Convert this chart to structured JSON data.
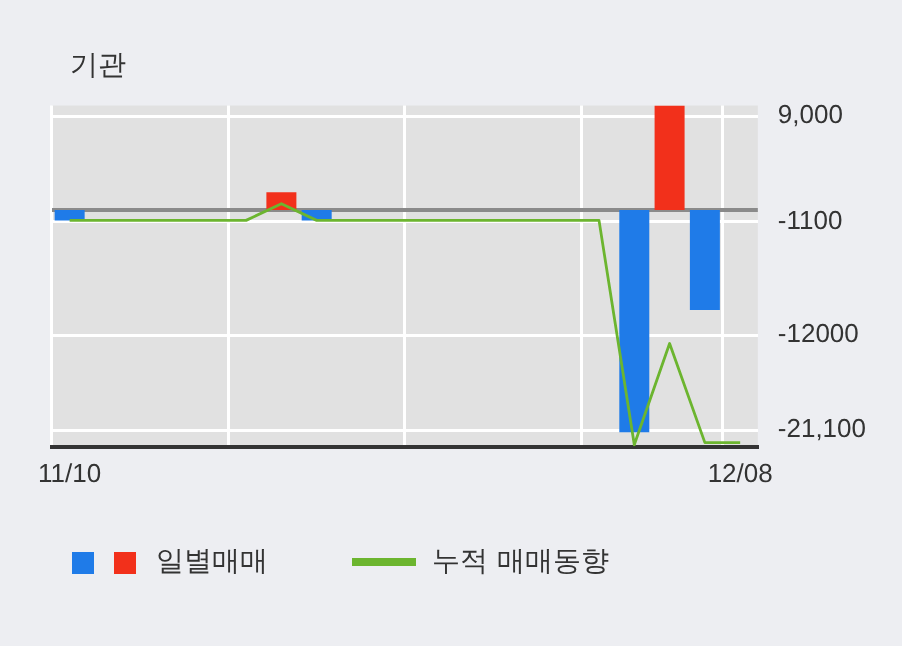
{
  "chart_data": {
    "type": "bar",
    "title": "기관",
    "categories": [
      "11/10",
      null,
      null,
      null,
      null,
      null,
      null,
      null,
      null,
      null,
      null,
      null,
      null,
      null,
      null,
      null,
      null,
      null,
      null,
      "12/08"
    ],
    "series": [
      {
        "name": "일별매매",
        "values": [
          -1000,
          null,
          null,
          null,
          null,
          null,
          1700,
          -1000,
          null,
          null,
          null,
          null,
          null,
          null,
          null,
          null,
          -21300,
          10000,
          -9600,
          null
        ],
        "colors": [
          "#1f7be8",
          null,
          null,
          null,
          null,
          null,
          "#f2301b",
          "#1f7be8",
          null,
          null,
          null,
          null,
          null,
          null,
          null,
          null,
          "#1f7be8",
          "#f2301b",
          "#1f7be8",
          null
        ],
        "color": "#1f7be8"
      },
      {
        "name": "누적 매매동향",
        "type": "line",
        "color": "#6cb52f",
        "values": [
          -1000,
          -1000,
          -1000,
          -1000,
          -1000,
          -1000,
          600,
          -1000,
          -1000,
          -1000,
          -1000,
          -1000,
          -1000,
          -1000,
          -1000,
          -1000,
          -22500,
          -12800,
          -22300,
          -22300
        ]
      }
    ],
    "ylim": [
      -22700,
      10000
    ],
    "yticks": [
      {
        "value": 9000,
        "label": "9,000"
      },
      -1100,
      -12000,
      {
        "value": -21100,
        "label": "-21,100"
      }
    ],
    "ref_lines": [
      {
        "axis": "y",
        "value": 0,
        "color": "#8a8a8a"
      }
    ],
    "grid": true,
    "legend": "bottom",
    "marker": "none"
  }
}
